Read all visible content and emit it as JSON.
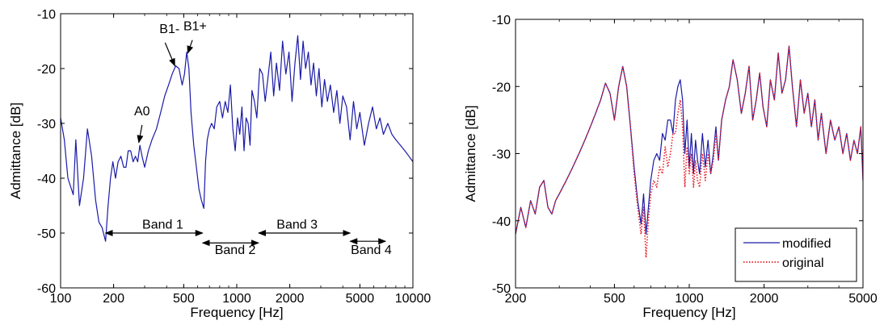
{
  "chart_data": [
    {
      "type": "line",
      "xscale": "log",
      "xlim": [
        100,
        10000
      ],
      "ylim": [
        -60,
        -10
      ],
      "xticks": [
        100,
        200,
        500,
        1000,
        2000,
        5000,
        10000
      ],
      "xtick_labels": [
        "100",
        "200",
        "500",
        "1000",
        "2000",
        "5000",
        "10000"
      ],
      "yticks": [
        -60,
        -50,
        -40,
        -30,
        -20,
        -10
      ],
      "ytick_labels": [
        "-60",
        "-50",
        "-40",
        "-30",
        "-20",
        "-10"
      ],
      "xlabel": "Frequency [Hz]",
      "ylabel": "Admittance [dB]",
      "grid": false,
      "series": [
        {
          "color": "#1a1aa8",
          "style": "solid",
          "x": [
            100,
            105,
            110,
            118,
            122,
            128,
            135,
            142,
            150,
            158,
            165,
            172,
            180,
            186,
            192,
            198,
            205,
            212,
            220,
            228,
            235,
            242,
            250,
            258,
            266,
            274,
            282,
            290,
            300,
            315,
            330,
            350,
            370,
            390,
            410,
            430,
            450,
            470,
            490,
            505,
            520,
            535,
            550,
            570,
            590,
            610,
            630,
            650,
            665,
            680,
            700,
            720,
            745,
            770,
            800,
            830,
            860,
            890,
            920,
            950,
            980,
            1010,
            1040,
            1070,
            1100,
            1130,
            1160,
            1190,
            1220,
            1260,
            1300,
            1350,
            1400,
            1450,
            1500,
            1560,
            1620,
            1680,
            1750,
            1820,
            1900,
            1980,
            2060,
            2140,
            2220,
            2300,
            2380,
            2460,
            2550,
            2640,
            2730,
            2830,
            2930,
            3040,
            3150,
            3270,
            3400,
            3550,
            3700,
            3850,
            4000,
            4200,
            4400,
            4600,
            4800,
            5000,
            5300,
            5600,
            5900,
            6200,
            6500,
            6800,
            7200,
            7600,
            8000,
            8500,
            9000,
            9500,
            10000
          ],
          "y": [
            -29,
            -33,
            -40,
            -43,
            -33,
            -45,
            -40,
            -31,
            -36,
            -44,
            -48,
            -49,
            -51.5,
            -45,
            -40,
            -37,
            -40,
            -37,
            -36,
            -38,
            -38,
            -35,
            -35,
            -37,
            -36,
            -37,
            -34,
            -36,
            -38,
            -35,
            -33,
            -31,
            -28,
            -25,
            -23,
            -21,
            -19.5,
            -20,
            -23,
            -21,
            -17,
            -20,
            -28,
            -34,
            -38,
            -42,
            -44,
            -45.5,
            -37,
            -33,
            -31,
            -30,
            -31,
            -27,
            -26,
            -29,
            -26,
            -28,
            -23,
            -31,
            -35,
            -29,
            -32,
            -27,
            -35,
            -29,
            -30,
            -34,
            -24,
            -26,
            -29,
            -20,
            -21,
            -26,
            -22,
            -17,
            -25,
            -19,
            -24,
            -15,
            -21,
            -17,
            -26,
            -19,
            -14,
            -22,
            -15,
            -20,
            -17,
            -23,
            -19,
            -25,
            -20,
            -27,
            -22,
            -26,
            -23,
            -28,
            -24,
            -30,
            -25,
            -27,
            -33,
            -26,
            -31,
            -28,
            -34,
            -30,
            -27,
            -31,
            -29,
            -32,
            -30,
            -32,
            -33,
            -34,
            -35,
            -36,
            -37
          ]
        }
      ],
      "annotations": [
        {
          "text": "A0",
          "x": 290,
          "y": -28.5
        },
        {
          "text": "B1-",
          "x": 415,
          "y": -13.5
        },
        {
          "text": "B1+",
          "x": 580,
          "y": -13
        },
        {
          "text": "Band 1",
          "x": 380,
          "y": -49.2
        },
        {
          "text": "Band 2",
          "x": 980,
          "y": -53.8
        },
        {
          "text": "Band 3",
          "x": 2200,
          "y": -49.2
        },
        {
          "text": "Band 4",
          "x": 5800,
          "y": -53.8
        }
      ],
      "arrows": [
        {
          "label": "A0",
          "from": [
            290,
            -30.3
          ],
          "to": [
            278,
            -33.5
          ]
        },
        {
          "label": "B1-",
          "from": [
            392,
            -15.3
          ],
          "to": [
            445,
            -19.5
          ]
        },
        {
          "label": "B1+",
          "from": [
            560,
            -14.8
          ],
          "to": [
            527,
            -17.2
          ]
        },
        {
          "label": "Band 1",
          "from": [
            180,
            -50
          ],
          "to": [
            640,
            -50
          ]
        },
        {
          "label": "Band 2",
          "from": [
            640,
            -51.8
          ],
          "to": [
            1330,
            -51.8
          ]
        },
        {
          "label": "Band 3",
          "from": [
            1330,
            -50
          ],
          "to": [
            4400,
            -50
          ]
        },
        {
          "label": "Band 4",
          "from": [
            4400,
            -51.5
          ],
          "to": [
            7000,
            -51.5
          ]
        }
      ]
    },
    {
      "type": "line",
      "xscale": "log",
      "xlim": [
        200,
        5000
      ],
      "ylim": [
        -50,
        -10
      ],
      "xticks": [
        200,
        500,
        1000,
        2000,
        5000
      ],
      "xtick_labels": [
        "200",
        "500",
        "1000",
        "2000",
        "5000"
      ],
      "yticks": [
        -50,
        -40,
        -30,
        -20,
        -10
      ],
      "ytick_labels": [
        "-50",
        "-40",
        "-30",
        "-20",
        "-10"
      ],
      "xlabel": "Frequency [Hz]",
      "ylabel": "Admittance [dB]",
      "grid": false,
      "legend": "bottom-right",
      "series": [
        {
          "name": "modified",
          "color": "#1a1aa8",
          "style": "solid",
          "x": [
            200,
            210,
            220,
            230,
            240,
            250,
            260,
            270,
            280,
            290,
            300,
            320,
            340,
            360,
            380,
            400,
            420,
            440,
            460,
            480,
            500,
            520,
            540,
            560,
            580,
            600,
            620,
            640,
            655,
            670,
            685,
            700,
            720,
            740,
            760,
            780,
            800,
            820,
            840,
            860,
            880,
            900,
            920,
            940,
            960,
            980,
            1000,
            1020,
            1040,
            1060,
            1080,
            1100,
            1130,
            1160,
            1190,
            1220,
            1250,
            1280,
            1310,
            1350,
            1400,
            1450,
            1500,
            1560,
            1620,
            1680,
            1740,
            1800,
            1860,
            1920,
            1980,
            2050,
            2120,
            2200,
            2280,
            2360,
            2440,
            2520,
            2600,
            2700,
            2800,
            2900,
            3000,
            3100,
            3200,
            3300,
            3400,
            3550,
            3700,
            3850,
            4000,
            4150,
            4300,
            4450,
            4600,
            4750,
            4900,
            5000
          ],
          "y": [
            -42,
            -38,
            -41,
            -37,
            -39,
            -35,
            -34,
            -38,
            -39,
            -37,
            -36,
            -34,
            -32,
            -30,
            -28,
            -26,
            -24,
            -22,
            -19.5,
            -21,
            -25,
            -20,
            -17,
            -20,
            -26,
            -32,
            -37,
            -40.5,
            -36,
            -42,
            -38,
            -34,
            -31,
            -30,
            -31,
            -27,
            -28,
            -25,
            -25,
            -27,
            -22,
            -20,
            -19,
            -22,
            -30,
            -25,
            -32,
            -27,
            -33,
            -28,
            -31,
            -33,
            -27,
            -32,
            -28,
            -33,
            -30,
            -26,
            -31,
            -25,
            -22,
            -20,
            -16,
            -19,
            -24,
            -21,
            -17,
            -25,
            -22,
            -18,
            -23,
            -26,
            -19,
            -22,
            -15,
            -21,
            -19,
            -14,
            -20,
            -26,
            -19,
            -24,
            -21,
            -26,
            -22,
            -28,
            -24,
            -30,
            -25,
            -28,
            -26,
            -30,
            -27,
            -31,
            -28,
            -30,
            -26,
            -34
          ]
        },
        {
          "name": "original",
          "color": "#e8202a",
          "style": "dotted",
          "x": [
            200,
            210,
            220,
            230,
            240,
            250,
            260,
            270,
            280,
            290,
            300,
            320,
            340,
            360,
            380,
            400,
            420,
            440,
            460,
            480,
            500,
            520,
            540,
            560,
            580,
            600,
            620,
            640,
            655,
            670,
            685,
            700,
            720,
            740,
            760,
            780,
            800,
            820,
            840,
            860,
            880,
            900,
            920,
            940,
            960,
            980,
            1000,
            1020,
            1040,
            1060,
            1080,
            1100,
            1130,
            1160,
            1190,
            1220,
            1250,
            1280,
            1310,
            1350,
            1400,
            1450,
            1500,
            1560,
            1620,
            1680,
            1740,
            1800,
            1860,
            1920,
            1980,
            2050,
            2120,
            2200,
            2280,
            2360,
            2440,
            2520,
            2600,
            2700,
            2800,
            2900,
            3000,
            3100,
            3200,
            3300,
            3400,
            3550,
            3700,
            3850,
            4000,
            4150,
            4300,
            4450,
            4600,
            4750,
            4900,
            5000
          ],
          "y": [
            -42,
            -38,
            -41,
            -37,
            -39,
            -35,
            -34,
            -38,
            -39,
            -37,
            -36,
            -34,
            -32,
            -30,
            -28,
            -26,
            -24,
            -22,
            -19.5,
            -21,
            -25,
            -20,
            -17,
            -20,
            -26,
            -33,
            -38,
            -42,
            -38,
            -45.5,
            -40,
            -36,
            -34,
            -35,
            -32,
            -33,
            -29,
            -32,
            -30,
            -27,
            -27,
            -24,
            -22,
            -26,
            -35,
            -29,
            -33,
            -30,
            -35,
            -31,
            -34,
            -35,
            -30,
            -34,
            -30,
            -33,
            -31,
            -27,
            -31,
            -25,
            -22,
            -20,
            -16,
            -19,
            -24,
            -21,
            -17,
            -25,
            -22,
            -18,
            -23,
            -26,
            -19,
            -22,
            -15,
            -21,
            -19,
            -14,
            -20,
            -26,
            -19,
            -24,
            -21,
            -26,
            -22,
            -28,
            -24,
            -30,
            -25,
            -28,
            -26,
            -30,
            -27,
            -31,
            -28,
            -30,
            -26,
            -34
          ]
        }
      ]
    }
  ]
}
